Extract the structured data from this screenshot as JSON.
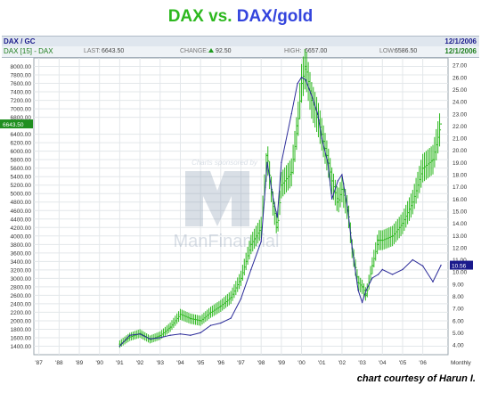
{
  "title": {
    "dax": "DAX",
    "vs": "vs.",
    "daxgold": "DAX/gold"
  },
  "header": {
    "series1": "DAX / GC",
    "date1": "12/1/2006",
    "series2": "DAX [15] - DAX",
    "last_label": "LAST:",
    "last_value": "6643.50",
    "change_label": "CHANGE:",
    "change_value": "92.50",
    "high_label": "HIGH:",
    "high_value": "6657.00",
    "low_label": "LOW:",
    "low_value": "6586.50",
    "date2": "12/1/2006"
  },
  "watermark": {
    "sponsor": "Charts sponsored by",
    "brand": "ManFinancial"
  },
  "credit": "chart courtesy of Harun I.",
  "colors": {
    "dax": "#2db81f",
    "ratio": "#2b2b99",
    "badge_dax": "#1f8f1f",
    "badge_ratio": "#1a1a8c"
  },
  "chart_data": {
    "type": "line",
    "x_ticks": [
      "'87",
      "'88",
      "'89",
      "'90",
      "'91",
      "'92",
      "'93",
      "'94",
      "'95",
      "'96",
      "'97",
      "'98",
      "'99",
      "'00",
      "'01",
      "'02",
      "'03",
      "'04",
      "'05",
      "'06",
      "Monthly"
    ],
    "y_left": {
      "ticks": [
        "1400.00",
        "1600.00",
        "1800.00",
        "2000.00",
        "2200.00",
        "2400.00",
        "2600.00",
        "2800.00",
        "3000.00",
        "3200.00",
        "3400.00",
        "3600.00",
        "3800.00",
        "4000.00",
        "4200.00",
        "4400.00",
        "4600.00",
        "4800.00",
        "5000.00",
        "5200.00",
        "5400.00",
        "5600.00",
        "5800.00",
        "6000.00",
        "6200.00",
        "6400.00",
        "6800.00",
        "7000.00",
        "7200.00",
        "7400.00",
        "7600.00",
        "7800.00",
        "8000.00"
      ],
      "ylim": [
        1200,
        8200
      ]
    },
    "y_right": {
      "ticks": [
        "4.00",
        "5.00",
        "6.00",
        "7.00",
        "8.00",
        "9.00",
        "10.00",
        "11.00",
        "12.00",
        "13.00",
        "14.00",
        "15.00",
        "16.00",
        "17.00",
        "18.00",
        "19.00",
        "20.00",
        "21.00",
        "22.00",
        "23.00",
        "24.00",
        "25.00",
        "26.00",
        "27.00"
      ],
      "ylim": [
        3.2,
        27.6
      ]
    },
    "badges": {
      "dax_last": "6643.50",
      "ratio_last": "10.56"
    },
    "series": [
      {
        "axis": "left",
        "style": "bars",
        "x": [
          1991.0,
          1991.5,
          1992.0,
          1992.5,
          1993.0,
          1993.5,
          1994.0,
          1994.5,
          1995.0,
          1995.5,
          1996.0,
          1996.5,
          1997.0,
          1997.5,
          1998.0,
          1998.3,
          1998.6,
          1998.8,
          1999.0,
          1999.5,
          1999.8,
          2000.0,
          2000.2,
          2000.5,
          2000.8,
          2001.0,
          2001.3,
          2001.5,
          2001.8,
          2002.0,
          2002.3,
          2002.5,
          2002.8,
          2003.0,
          2003.2,
          2003.5,
          2003.8,
          2004.0,
          2004.5,
          2005.0,
          2005.5,
          2006.0,
          2006.5,
          2006.9
        ],
        "y": [
          1450,
          1620,
          1700,
          1560,
          1650,
          1850,
          2150,
          2050,
          2000,
          2200,
          2350,
          2550,
          3000,
          3800,
          4200,
          5900,
          4700,
          4200,
          5200,
          5500,
          6600,
          7600,
          8000,
          7200,
          6800,
          6400,
          5800,
          5300,
          4800,
          5100,
          4600,
          3700,
          2900,
          2800,
          2600,
          3300,
          3900,
          3900,
          4000,
          4300,
          4800,
          5600,
          5800,
          6643
        ]
      },
      {
        "axis": "right",
        "style": "line",
        "x": [
          1991.0,
          1991.5,
          1992.0,
          1992.5,
          1993.0,
          1993.5,
          1994.0,
          1994.5,
          1995.0,
          1995.5,
          1996.0,
          1996.5,
          1997.0,
          1997.5,
          1998.0,
          1998.3,
          1998.6,
          1998.8,
          1999.0,
          1999.5,
          1999.8,
          2000.0,
          2000.2,
          2000.5,
          2000.8,
          2001.0,
          2001.3,
          2001.5,
          2001.8,
          2002.0,
          2002.3,
          2002.5,
          2002.8,
          2003.0,
          2003.2,
          2003.5,
          2003.8,
          2004.0,
          2004.5,
          2005.0,
          2005.5,
          2006.0,
          2006.5,
          2006.9
        ],
        "y": [
          3.9,
          4.8,
          4.9,
          4.5,
          4.6,
          4.8,
          4.9,
          4.8,
          5.0,
          5.6,
          5.8,
          6.2,
          7.8,
          10.2,
          12.5,
          19.0,
          16.0,
          14.5,
          19.0,
          23.0,
          25.5,
          26.0,
          25.8,
          24.5,
          23.0,
          21.0,
          19.0,
          16.0,
          17.5,
          18.0,
          15.0,
          12.0,
          8.5,
          7.5,
          8.5,
          9.5,
          9.8,
          10.2,
          9.8,
          10.2,
          11.0,
          10.5,
          9.2,
          10.56
        ]
      }
    ]
  }
}
